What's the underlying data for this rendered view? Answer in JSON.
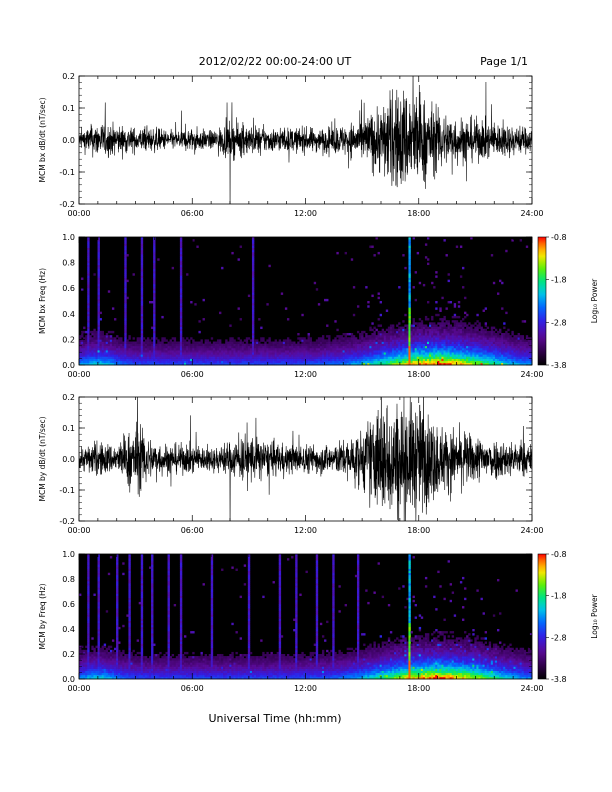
{
  "header": {
    "title": "2012/02/22  00:00-24:00 UT",
    "page": "Page 1/1"
  },
  "chart_data": [
    {
      "type": "line",
      "ylabel": "MCM bx dB/dt (nT/sec)",
      "xlim": [
        0,
        24
      ],
      "ylim": [
        -0.2,
        0.2
      ],
      "x_ticks": [
        "00:00",
        "06:00",
        "12:00",
        "18:00",
        "24:00"
      ],
      "y_ticks": [
        "-0.2",
        "-0.1",
        "0.0",
        "0.1",
        "0.2"
      ],
      "envelope": {
        "hours": [
          0,
          1,
          2,
          3,
          4,
          5,
          6,
          7,
          8,
          9,
          10,
          11,
          12,
          13,
          14,
          15,
          16,
          17,
          18,
          19,
          20,
          21,
          22,
          23,
          24
        ],
        "amplitude": [
          0.03,
          0.06,
          0.05,
          0.04,
          0.04,
          0.03,
          0.04,
          0.03,
          0.06,
          0.05,
          0.04,
          0.04,
          0.04,
          0.04,
          0.05,
          0.07,
          0.12,
          0.18,
          0.16,
          0.1,
          0.08,
          0.07,
          0.06,
          0.05,
          0.04
        ]
      },
      "spikes": [
        {
          "hour": 8.0,
          "value": -0.2
        },
        {
          "hour": 17.7,
          "value": 0.2
        }
      ],
      "grid": false
    },
    {
      "type": "heatmap",
      "ylabel": "MCM bx Freq (Hz)",
      "xlim": [
        0,
        24
      ],
      "ylim": [
        0,
        1
      ],
      "x_ticks": [
        "00:00",
        "06:00",
        "12:00",
        "18:00",
        "24:00"
      ],
      "y_ticks": [
        "0.0",
        "0.2",
        "0.4",
        "0.6",
        "0.8",
        "1.0"
      ],
      "colorbar": {
        "label": "Log₁₀ Power",
        "range": [
          -3.8,
          -0.8
        ],
        "ticks": [
          "-0.8",
          "-1.8",
          "-2.8",
          "-3.8"
        ]
      },
      "bright_lines_hours": [
        0.5,
        1.0,
        2.5,
        3.3,
        4.0,
        5.4,
        9.2,
        17.5
      ],
      "activity_hours": [
        0,
        24
      ]
    },
    {
      "type": "line",
      "ylabel": "MCM by dB/dt (nT/sec)",
      "xlim": [
        0,
        24
      ],
      "ylim": [
        -0.2,
        0.2
      ],
      "x_ticks": [
        "00:00",
        "06:00",
        "12:00",
        "18:00",
        "24:00"
      ],
      "y_ticks": [
        "-0.2",
        "-0.1",
        "0.0",
        "0.1",
        "0.2"
      ],
      "envelope": {
        "hours": [
          0,
          1,
          2,
          3,
          4,
          5,
          6,
          7,
          8,
          9,
          10,
          11,
          12,
          13,
          14,
          15,
          16,
          17,
          18,
          19,
          20,
          21,
          22,
          23,
          24
        ],
        "amplitude": [
          0.04,
          0.06,
          0.05,
          0.12,
          0.06,
          0.05,
          0.05,
          0.04,
          0.06,
          0.09,
          0.06,
          0.05,
          0.05,
          0.05,
          0.06,
          0.1,
          0.2,
          0.2,
          0.2,
          0.12,
          0.1,
          0.08,
          0.07,
          0.06,
          0.05
        ]
      },
      "spikes": [
        {
          "hour": 8.0,
          "value": -0.2
        },
        {
          "hour": 3.1,
          "value": 0.2
        }
      ],
      "grid": false
    },
    {
      "type": "heatmap",
      "ylabel": "MCM by Freq (Hz)",
      "xlim": [
        0,
        24
      ],
      "ylim": [
        0,
        1
      ],
      "x_ticks": [
        "00:00",
        "06:00",
        "12:00",
        "18:00",
        "24:00"
      ],
      "y_ticks": [
        "0.0",
        "0.2",
        "0.4",
        "0.6",
        "0.8",
        "1.0"
      ],
      "colorbar": {
        "label": "Log₁₀ Power",
        "range": [
          -3.8,
          -0.8
        ],
        "ticks": [
          "-0.8",
          "-1.8",
          "-2.8",
          "-3.8"
        ]
      },
      "bright_lines_hours": [
        0.5,
        1.0,
        2.0,
        2.7,
        3.3,
        3.9,
        4.7,
        5.4,
        7.0,
        9.0,
        10.6,
        11.5,
        12.6,
        13.5,
        14.8,
        17.5
      ],
      "activity_hours": [
        0,
        24
      ]
    }
  ],
  "xaxis_title": "Universal Time (hh:mm)"
}
